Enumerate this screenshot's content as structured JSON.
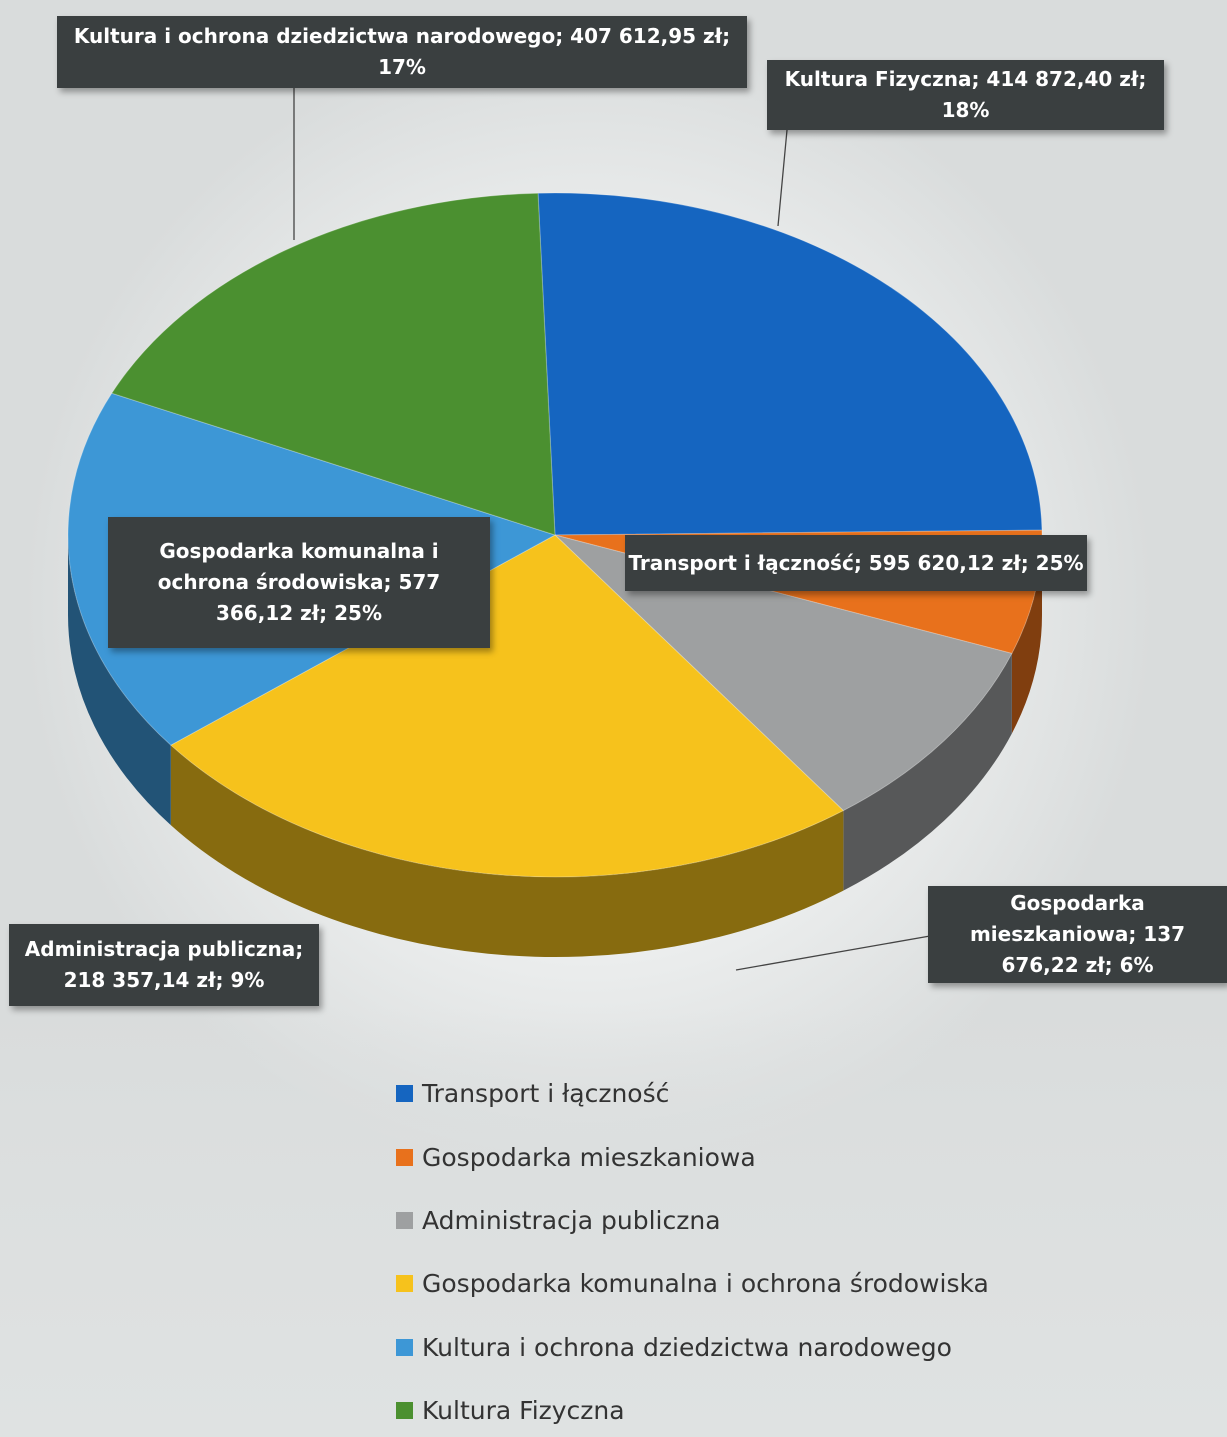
{
  "chart_data": {
    "type": "pie",
    "style": "3d",
    "currency": "zł",
    "legend_position": "bottom",
    "slices": [
      {
        "name": "Transport i łączność",
        "value": 595620.12,
        "value_label": "595 620,12 zł",
        "percent": 25,
        "color": "#1565c0",
        "callout": "Transport i łączność; 595 620,12 zł; 25%"
      },
      {
        "name": "Gospodarka mieszkaniowa",
        "value": 137676.22,
        "value_label": "137 676,22 zł",
        "percent": 6,
        "color": "#e8711c",
        "callout": "Gospodarka mieszkaniowa; 137 676,22 zł; 6%"
      },
      {
        "name": "Administracja publiczna",
        "value": 218357.14,
        "value_label": "218 357,14 zł",
        "percent": 9,
        "color": "#9ea0a1",
        "callout": "Administracja publiczna; 218 357,14 zł; 9%"
      },
      {
        "name": "Gospodarka komunalna i ochrona środowiska",
        "value": 577366.12,
        "value_label": "577 366,12 zł",
        "percent": 25,
        "color": "#f6c21c",
        "callout": "Gospodarka komunalna i ochrona środowiska; 577 366,12 zł; 25%"
      },
      {
        "name": "Kultura i ochrona dziedzictwa narodowego",
        "value": 407612.95,
        "value_label": "407 612,95 zł",
        "percent": 17,
        "color": "#3d97d6",
        "callout": "Kultura i ochrona dziedzictwa narodowego; 407 612,95 zł; 17%"
      },
      {
        "name": "Kultura Fizyczna",
        "value": 414872.4,
        "value_label": "414 872,40 zł",
        "percent": 18,
        "color": "#4b9030",
        "callout": "Kultura Fizyczna; 414 872,40 zł; 18%"
      }
    ]
  }
}
